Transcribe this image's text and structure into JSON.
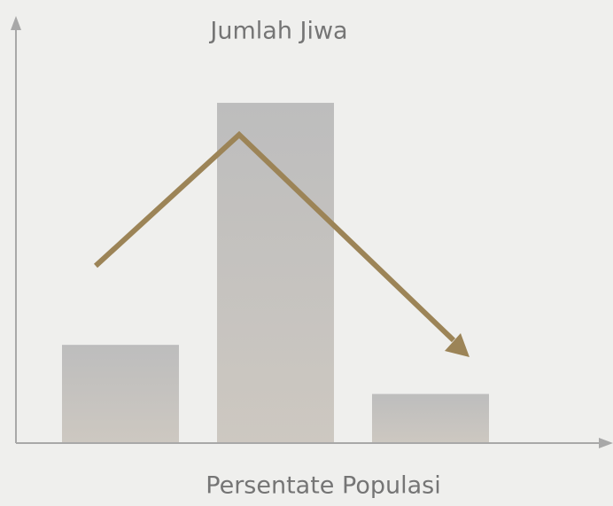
{
  "chart_data": {
    "type": "bar",
    "ylabel": "Jumlah Jiwa",
    "xlabel": "Persentate Populasi",
    "categories": [
      null,
      null,
      null
    ],
    "values": [
      28,
      97,
      14
    ],
    "color": "#c3c2c0",
    "ylim": [
      0,
      120
    ]
  }
}
